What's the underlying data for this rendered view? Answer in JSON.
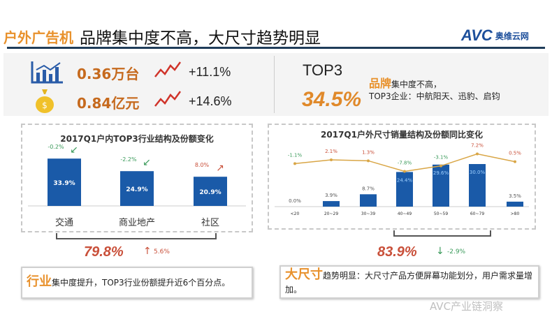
{
  "header": {
    "tag": "户外广告机",
    "title": "品牌集中度不高，大尺寸趋势明显",
    "logo_text": "AVC",
    "logo_cn": "奥维云网"
  },
  "stats": [
    {
      "icon": "bar-chart-icon",
      "value": "0.36万台",
      "trend_icon": "trend-up-icon",
      "change": "+11.1%"
    },
    {
      "icon": "money-bag-icon",
      "value": "0.84亿元",
      "trend_icon": "trend-up-icon",
      "change": "+14.6%"
    }
  ],
  "brand": {
    "label": "TOP3",
    "value": "34.5%",
    "highlight": "品牌",
    "text1": "集中度不高，",
    "text2": "TOP3企业：中航阳天、迅豹、启钧"
  },
  "chart_data": [
    {
      "type": "bar",
      "title": "2017Q1户内TOP3行业结构及份额变化",
      "categories": [
        "交通",
        "商业地产",
        "社区"
      ],
      "values": [
        33.9,
        24.9,
        20.9
      ],
      "value_labels": [
        "33.9%",
        "24.9%",
        "20.9%"
      ],
      "changes": [
        "-0.2%",
        "-2.2%",
        "8.0%"
      ],
      "change_direction": [
        "down",
        "down",
        "up"
      ],
      "ylim": [
        0,
        40
      ],
      "grid": false,
      "bar_color": "#1a5aa8",
      "summary": {
        "value": "79.8%",
        "change": "5.6%",
        "direction": "up"
      }
    },
    {
      "type": "bar+line",
      "title": "2017Q1户外尺寸销量结构及份额同比变化",
      "categories": [
        "<20",
        "20~29",
        "30~39",
        "40~49",
        "50~59",
        "60~79",
        ">80"
      ],
      "values": [
        0.0,
        3.9,
        8.7,
        24.4,
        29.6,
        30.0,
        3.5
      ],
      "value_labels": [
        "0.0%",
        "3.9%",
        "8.7%",
        "24.4%",
        "29.6%",
        "30.0%",
        "3.5%"
      ],
      "line_values": [
        -1.1,
        2.1,
        1.3,
        -7.8,
        -3.1,
        7.2,
        0.5
      ],
      "line_labels": [
        "-1.1%",
        "2.1%",
        "1.3%",
        "-7.8%",
        "-3.1%",
        "7.2%",
        "0.5%"
      ],
      "ylim": [
        0,
        30
      ],
      "grid": false,
      "bar_color": "#1a5aa8",
      "line_color": "#d9a646",
      "summary": {
        "value": "83.9%",
        "change": "-2.9%",
        "direction": "down"
      }
    }
  ],
  "captions": [
    {
      "highlight": "行业",
      "text": "集中度提升，TOP3行业份额提升近6个百分点。"
    },
    {
      "highlight": "大尺寸",
      "text": "趋势明显：大尺寸产品方便屏幕功能划分，用户需求量增加。"
    }
  ],
  "watermark": "AVC产业链洞察",
  "colors": {
    "accent": "#e8912c",
    "bar": "#1a5aa8",
    "up": "#c9503a",
    "down": "#3a9a5a"
  }
}
